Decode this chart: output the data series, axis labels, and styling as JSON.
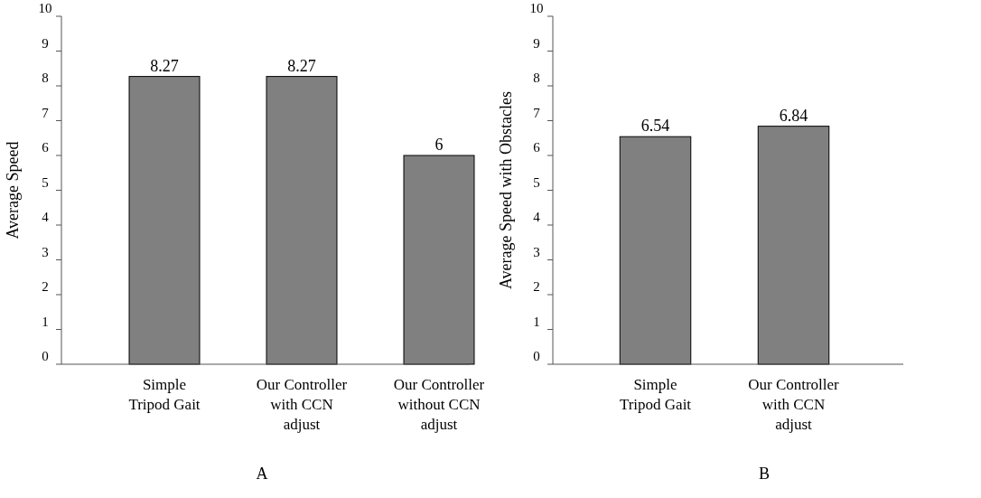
{
  "chart_data": [
    {
      "type": "bar",
      "xlabel": "A",
      "ylabel": "Average Speed",
      "categories": [
        "Simple\nTripod Gait",
        "Our Controller\nwith CCN\nadjust",
        "Our Controller\nwithout CCN\nadjust"
      ],
      "values": [
        8.27,
        8.27,
        6
      ],
      "color": "#808080",
      "ylim": [
        0,
        10
      ],
      "yticks": [
        0,
        1,
        2,
        3,
        4,
        5,
        6,
        7,
        8,
        9,
        10
      ],
      "data_labels": true
    },
    {
      "type": "bar",
      "xlabel": "B",
      "ylabel": "Average Speed with Obstacles",
      "categories": [
        "Simple\nTripod Gait",
        "Our Controller\nwith CCN\nadjust"
      ],
      "values": [
        6.54,
        6.84
      ],
      "color": "#808080",
      "ylim": [
        0,
        10
      ],
      "yticks": [
        0,
        1,
        2,
        3,
        4,
        5,
        6,
        7,
        8,
        9,
        10
      ],
      "data_labels": true
    }
  ]
}
